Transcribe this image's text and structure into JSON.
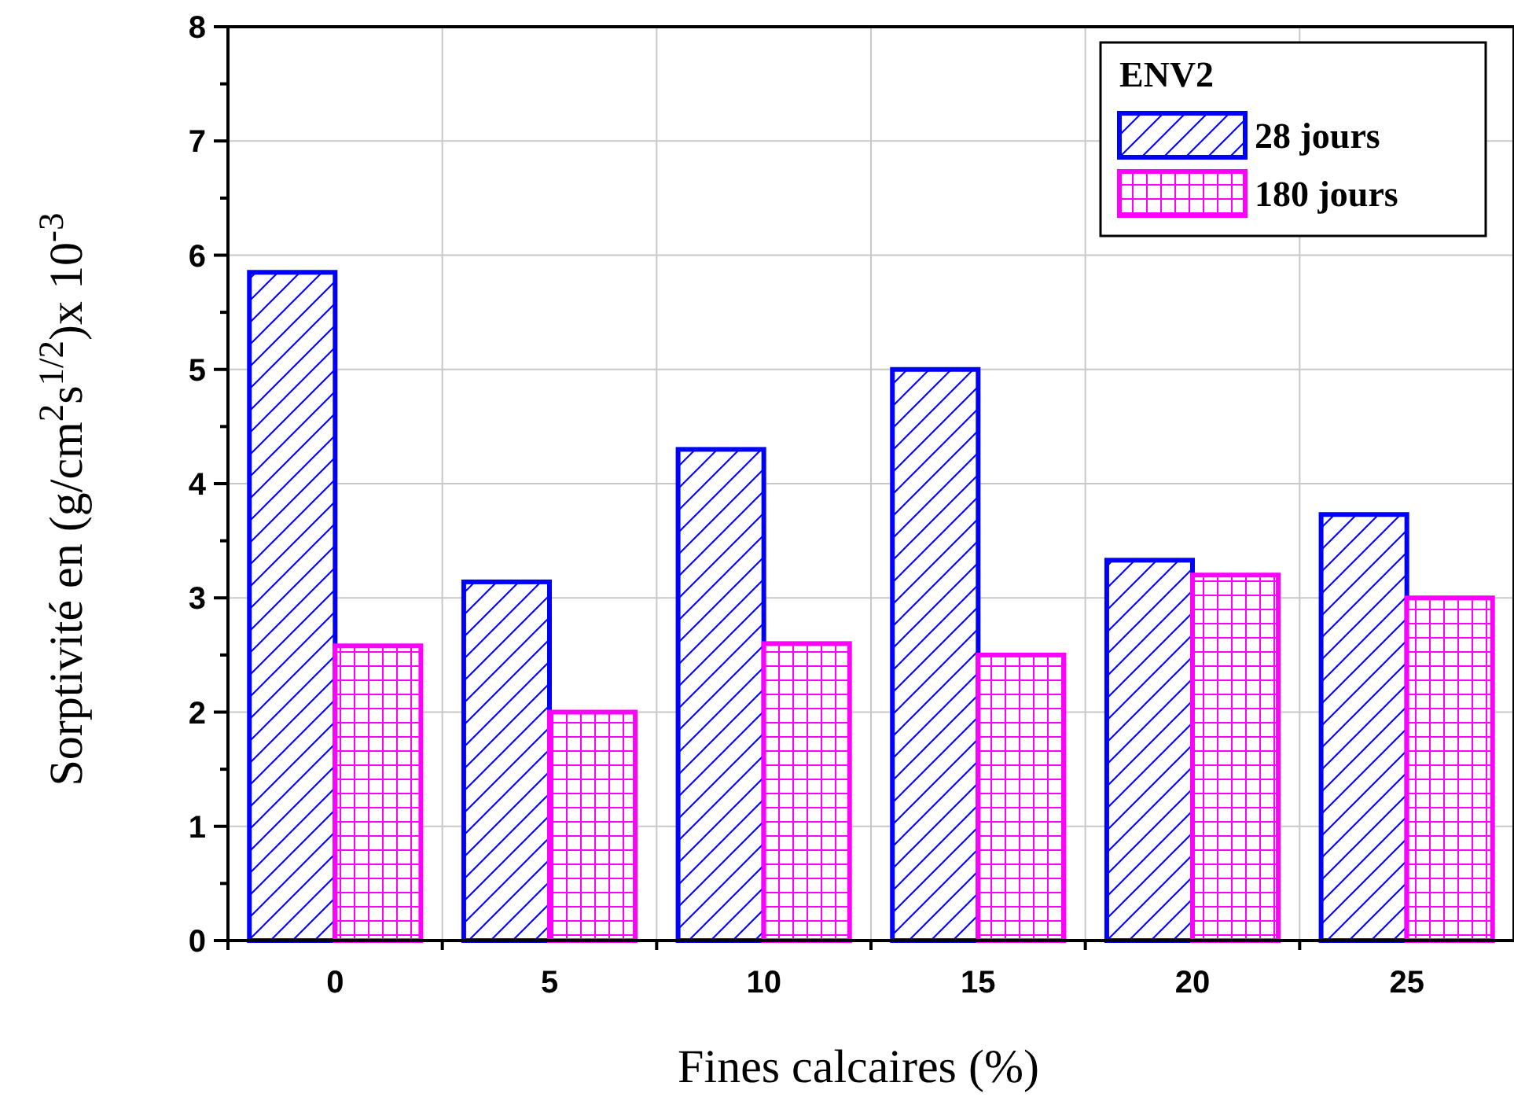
{
  "chart_data": {
    "type": "bar",
    "xlabel": "Fines calcaires (%)",
    "ylabel": "Sorptivité en (g/cm$^{2}$s$^{1/2}$)x 10$^{-3}$",
    "legend_title": "ENV2",
    "categories": [
      "0",
      "5",
      "10",
      "15",
      "20",
      "25"
    ],
    "series": [
      {
        "name": "28 jours",
        "color": "#0000ff",
        "values": [
          5.85,
          3.14,
          4.3,
          5.0,
          3.33,
          3.73
        ]
      },
      {
        "name": "180 jours",
        "color": "#ff00ff",
        "values": [
          2.58,
          2.0,
          2.6,
          2.5,
          3.2,
          3.0
        ]
      }
    ],
    "ylim": [
      0,
      8
    ],
    "yticks": [
      0,
      {
        "value": 0.5,
        "label": null
      },
      1,
      {
        "value": 1.5,
        "label": null
      },
      2,
      {
        "value": 2.5,
        "label": null
      },
      3,
      {
        "value": 3.5,
        "label": null
      },
      4,
      {
        "value": 4.5,
        "label": null
      },
      5,
      {
        "value": 5.5,
        "label": null
      },
      6,
      {
        "value": 6.5,
        "label": null
      },
      7,
      {
        "value": 7.5,
        "label": null
      },
      8
    ],
    "grid": true,
    "legend": "top right"
  }
}
